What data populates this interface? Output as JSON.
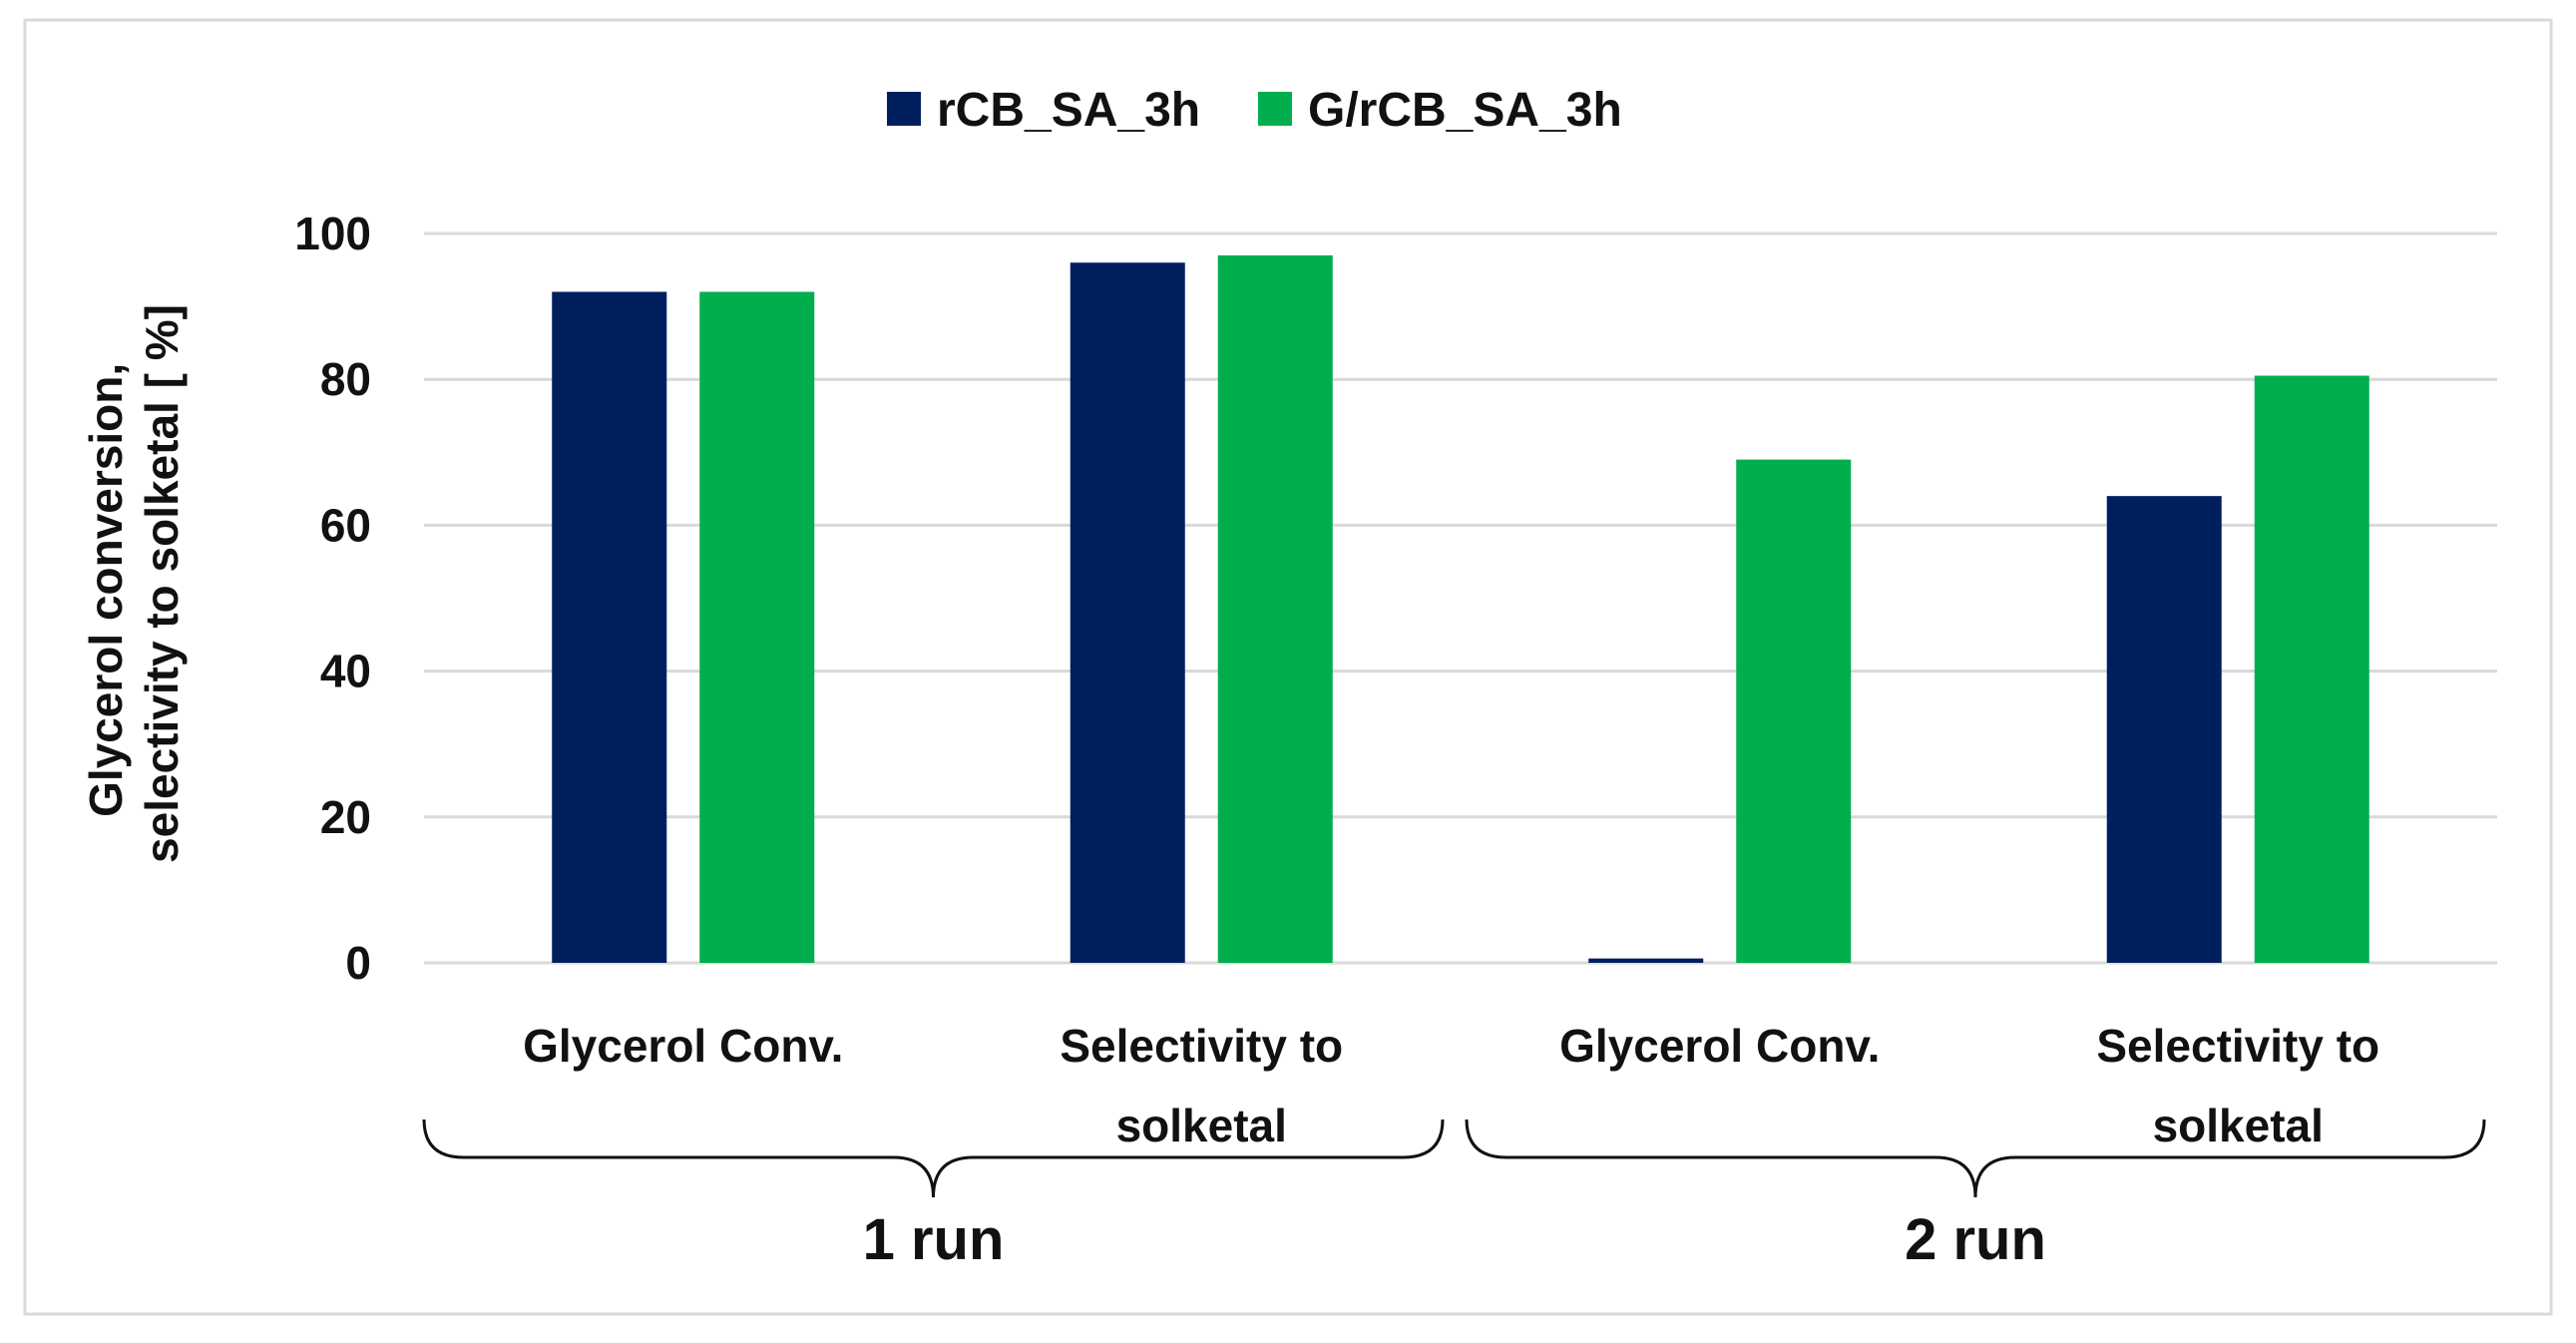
{
  "chart_data": {
    "type": "bar",
    "title": "",
    "ylabel_lines": [
      "Glycerol conversion,",
      "selectivity to solketal [ %]"
    ],
    "xlabel": "",
    "ylim": [
      0,
      100
    ],
    "yticks": [
      0,
      20,
      40,
      60,
      80,
      100
    ],
    "grid": true,
    "legend_position": "top",
    "categories": [
      {
        "lines": [
          "Glycerol Conv."
        ],
        "group": "1 run"
      },
      {
        "lines": [
          "Selectivity  to",
          "solketal"
        ],
        "group": "1 run"
      },
      {
        "lines": [
          "Glycerol Conv."
        ],
        "group": "2 run"
      },
      {
        "lines": [
          "Selectivity  to",
          "solketal"
        ],
        "group": "2 run"
      }
    ],
    "groups": [
      "1 run",
      "2 run"
    ],
    "series": [
      {
        "name": "rCB_SA_3h",
        "color": "#001f5f",
        "values": [
          92,
          96,
          0.6,
          64
        ]
      },
      {
        "name": "G/rCB_SA_3h",
        "color": "#00ae4d",
        "values": [
          92,
          97,
          69,
          80.5
        ]
      }
    ]
  }
}
